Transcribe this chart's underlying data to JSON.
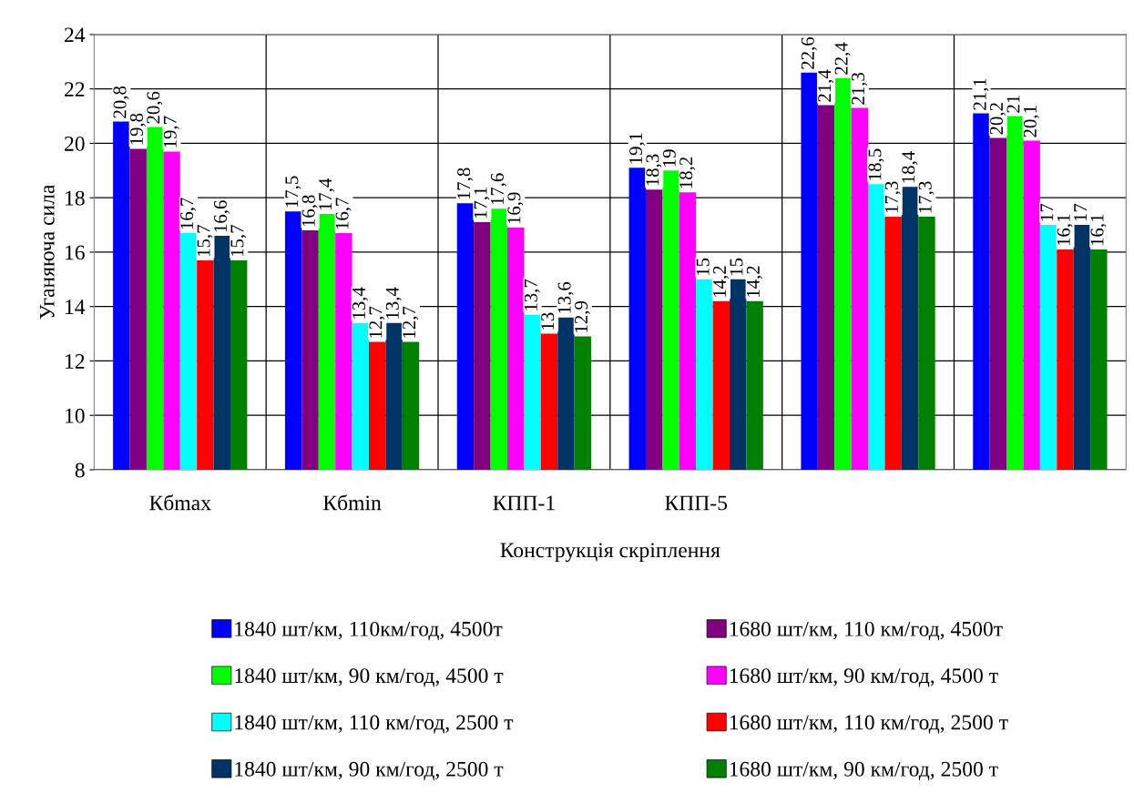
{
  "chart_data": {
    "type": "bar",
    "xlabel": "Конструкція скріплення",
    "ylabel": "Уганяюча сила",
    "categories": [
      "Кбmax",
      "Кбmin",
      "КПП-1",
      "КПП-5",
      null,
      null
    ],
    "ylim": [
      8,
      24
    ],
    "yticks": [
      8,
      10,
      12,
      14,
      16,
      18,
      20,
      22,
      24
    ],
    "grid": true,
    "legend": "bottom",
    "series": [
      {
        "name": "1840 шт/км, 110км/год, 4500т",
        "color": "#0000ff",
        "values": [
          20.8,
          17.5,
          17.8,
          19.1,
          22.6,
          21.1
        ],
        "value_labels": [
          "20,8",
          "17,5",
          "17,8",
          "19,1",
          "22,6",
          "21,1"
        ]
      },
      {
        "name": "1680 шт/км, 110 км/год, 4500т",
        "color": "#800080",
        "values": [
          19.8,
          16.8,
          17.1,
          18.3,
          21.4,
          20.2
        ],
        "value_labels": [
          "19,8",
          "16,8",
          "17,1",
          "18,3",
          "21,4",
          "20,2"
        ]
      },
      {
        "name": "1840 шт/км, 90 км/год, 4500 т",
        "color": "#00ff00",
        "values": [
          20.6,
          17.4,
          17.6,
          19,
          22.4,
          21
        ],
        "value_labels": [
          "20,6",
          "17,4",
          "17,6",
          "19",
          "22,4",
          "21"
        ]
      },
      {
        "name": "1680 шт/км, 90 км/год, 4500 т",
        "color": "#ff00ff",
        "values": [
          19.7,
          16.7,
          16.9,
          18.2,
          21.3,
          20.1
        ],
        "value_labels": [
          "19,7",
          "16,7",
          "16,9",
          "18,2",
          "21,3",
          "20,1"
        ]
      },
      {
        "name": "1840 шт/км, 110 км/год, 2500 т",
        "color": "#00ffff",
        "values": [
          16.7,
          13.4,
          13.7,
          15,
          18.5,
          17
        ],
        "value_labels": [
          "16,7",
          "13,4",
          "13,7",
          "15",
          "18,5",
          "17"
        ]
      },
      {
        "name": "1680 шт/км, 110 км/год, 2500 т",
        "color": "#ff0000",
        "values": [
          15.7,
          12.7,
          13,
          14.2,
          17.3,
          16.1
        ],
        "value_labels": [
          "15,7",
          "12,7",
          "13",
          "14,2",
          "17,3",
          "16,1"
        ]
      },
      {
        "name": "1840 шт/км, 90 км/год, 2500 т",
        "color": "#003366",
        "values": [
          16.6,
          13.4,
          13.6,
          15,
          18.4,
          17
        ],
        "value_labels": [
          "16,6",
          "13,4",
          "13,6",
          "15",
          "18,4",
          "17"
        ]
      },
      {
        "name": "1680 шт/км, 90 км/год, 2500 т",
        "color": "#008000",
        "values": [
          15.7,
          12.7,
          12.9,
          14.2,
          17.3,
          16.1
        ],
        "value_labels": [
          "15,7",
          "12,7",
          "12,9",
          "14,2",
          "17,3",
          "16,1"
        ]
      }
    ]
  }
}
